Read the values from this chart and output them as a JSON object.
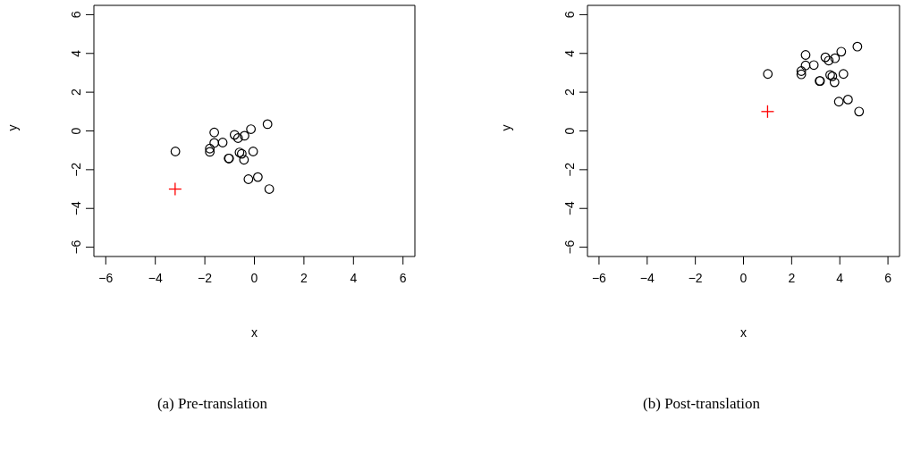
{
  "chart_data": [
    {
      "type": "scatter",
      "xlabel": "x",
      "ylabel": "y",
      "xlim": [
        -6.48,
        6.48
      ],
      "ylim": [
        -6.48,
        6.48
      ],
      "xticks": [
        -6,
        -4,
        -2,
        0,
        2,
        4,
        6
      ],
      "yticks": [
        -6,
        -4,
        -2,
        0,
        2,
        4,
        6
      ],
      "annotations": [
        "(a) Pre-translation"
      ],
      "series": [
        {
          "color": "#000000",
          "marker": "circle",
          "x": [
            -3.19,
            -1.8,
            -1.8,
            -1.62,
            -1.62,
            -1.28,
            -1.04,
            -1.02,
            -0.8,
            -0.66,
            -0.6,
            -0.51,
            -0.4,
            -0.42,
            -0.14,
            -0.05,
            0.53,
            -0.24,
            0.14,
            0.6
          ],
          "values": [
            -1.06,
            -0.91,
            -1.08,
            -0.08,
            -0.62,
            -0.6,
            -1.42,
            -1.42,
            -0.2,
            -0.37,
            -1.11,
            -1.18,
            -0.25,
            -1.49,
            0.09,
            -1.06,
            0.35,
            -2.49,
            -2.38,
            -3.0
          ]
        },
        {
          "color": "#ff0000",
          "marker": "cross",
          "x": [
            -3.2
          ],
          "values": [
            -3.0
          ]
        }
      ]
    },
    {
      "type": "scatter",
      "xlabel": "x",
      "ylabel": "y",
      "xlim": [
        -6.48,
        6.48
      ],
      "ylim": [
        -6.48,
        6.48
      ],
      "xticks": [
        -6,
        -4,
        -2,
        0,
        2,
        4,
        6
      ],
      "yticks": [
        -6,
        -4,
        -2,
        0,
        2,
        4,
        6
      ],
      "annotations": [
        "(b) Post-translation"
      ],
      "series": [
        {
          "color": "#000000",
          "marker": "circle",
          "x": [
            1.01,
            2.4,
            2.4,
            2.58,
            2.58,
            2.92,
            3.16,
            3.18,
            3.4,
            3.54,
            3.6,
            3.69,
            3.8,
            3.78,
            4.06,
            4.15,
            4.73,
            3.96,
            4.34,
            4.8
          ],
          "values": [
            2.94,
            3.09,
            2.92,
            3.92,
            3.38,
            3.4,
            2.58,
            2.58,
            3.8,
            3.63,
            2.89,
            2.82,
            3.75,
            2.51,
            4.09,
            2.94,
            4.35,
            1.51,
            1.62,
            1.0
          ]
        },
        {
          "color": "#ff0000",
          "marker": "cross",
          "x": [
            1.0
          ],
          "values": [
            1.0
          ]
        }
      ]
    }
  ]
}
